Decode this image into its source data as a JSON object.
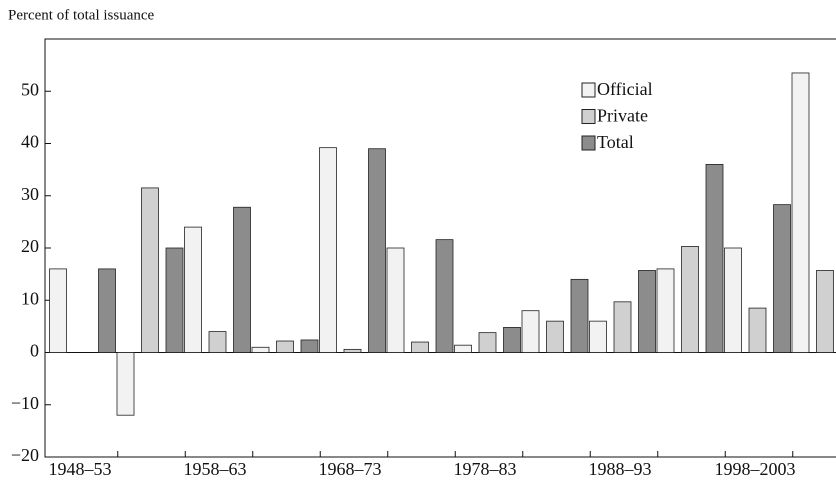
{
  "chart_data": {
    "type": "bar",
    "y_label": "Percent of total issuance",
    "categories": [
      "1948–53",
      null,
      "1958–63",
      null,
      "1968–73",
      null,
      "1978–83",
      null,
      "1988–93",
      null,
      "1998–2003",
      null
    ],
    "series": [
      {
        "name": "Official",
        "color": "#f2f2f2",
        "values": [
          16,
          -12,
          24,
          1,
          39.2,
          20,
          1.4,
          8,
          6,
          16,
          20,
          53.5
        ]
      },
      {
        "name": "Private",
        "color": "#d0d0d0",
        "values": [
          null,
          31.5,
          4,
          2.2,
          0.6,
          2,
          3.8,
          6,
          9.7,
          20.3,
          8.5,
          15.7
        ]
      },
      {
        "name": "Total",
        "color": "#8c8c8c",
        "values": [
          16,
          20,
          27.8,
          2.4,
          39,
          21.6,
          4.8,
          14,
          15.7,
          36,
          28.3,
          null
        ]
      }
    ],
    "ylim": [
      -20,
      60
    ],
    "yticks": [
      {
        "value": -20,
        "label": "−20"
      },
      {
        "value": -10,
        "label": "−10"
      },
      0,
      10,
      20,
      30,
      40,
      50
    ],
    "legend": "upper right"
  }
}
